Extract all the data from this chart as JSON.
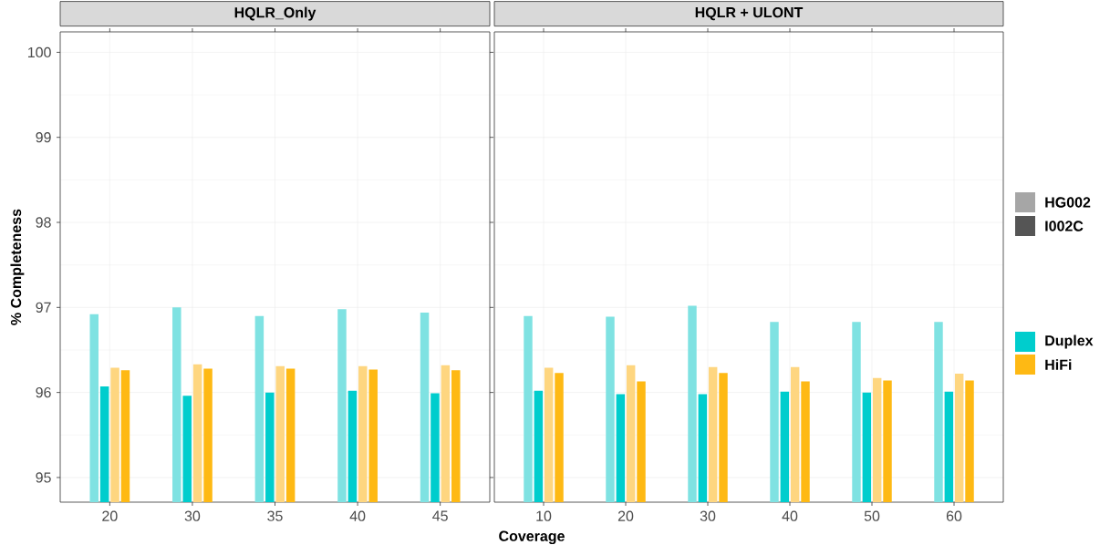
{
  "chart_data": [
    {
      "type": "bar",
      "title": "HQLR_Only",
      "xlabel": "Coverage",
      "ylabel": "% Completeness",
      "categories": [
        "20",
        "30",
        "35",
        "40",
        "45"
      ],
      "series": [
        {
          "color": "#7fe2e2",
          "values": [
            96.92,
            97.0,
            96.9,
            96.98,
            96.94
          ]
        },
        {
          "color": "#00cdcd",
          "values": [
            96.07,
            95.96,
            96.0,
            96.02,
            95.99
          ]
        },
        {
          "color": "#fed680",
          "values": [
            96.29,
            96.33,
            96.31,
            96.31,
            96.32
          ]
        },
        {
          "color": "#feb914",
          "values": [
            96.26,
            96.28,
            96.28,
            96.27,
            96.26
          ]
        }
      ],
      "ylim": [
        94.71,
        100.24
      ],
      "yticks": [
        95,
        96,
        97,
        98,
        99,
        100
      ],
      "grid": true
    },
    {
      "type": "bar",
      "title": "HQLR + ULONT",
      "categories": [
        "10",
        "20",
        "30",
        "40",
        "50",
        "60"
      ],
      "series": [
        {
          "color": "#7fe2e2",
          "values": [
            96.9,
            96.89,
            97.02,
            96.83,
            96.83,
            96.83
          ]
        },
        {
          "color": "#00cdcd",
          "values": [
            96.02,
            95.98,
            95.98,
            96.01,
            96.0,
            96.01
          ]
        },
        {
          "color": "#fed680",
          "values": [
            96.29,
            96.32,
            96.3,
            96.3,
            96.17,
            96.22
          ]
        },
        {
          "color": "#feb914",
          "values": [
            96.23,
            96.13,
            96.23,
            96.13,
            96.14,
            96.14
          ]
        }
      ],
      "ylim": [
        94.71,
        100.24
      ],
      "yticks": [
        95,
        96,
        97,
        98,
        99,
        100
      ],
      "grid": true,
      "tick_labels": "x",
      "annotations": [
        "HG002",
        "I002C",
        "Duplex",
        "HiFi"
      ]
    }
  ]
}
